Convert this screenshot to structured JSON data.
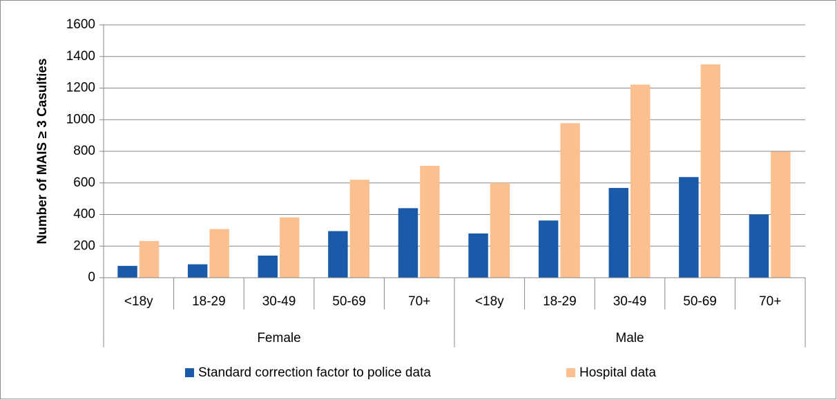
{
  "chart_data": {
    "type": "bar",
    "y_label": "Number of MAIS ≥ 3 Casulties",
    "groups": [
      {
        "name": "Female",
        "categories": [
          "<18y",
          "18-29",
          "30-49",
          "50-69",
          "70+"
        ]
      },
      {
        "name": "Male",
        "categories": [
          "<18y",
          "18-29",
          "30-49",
          "50-69",
          "70+"
        ]
      }
    ],
    "series": [
      {
        "name": "Standard correction factor to police data",
        "color": "#1a5aa8",
        "values": [
          75,
          85,
          140,
          295,
          440,
          280,
          362,
          568,
          637,
          400
        ]
      },
      {
        "name": "Hospital data",
        "color": "#fac090",
        "values": [
          232,
          308,
          382,
          620,
          708,
          600,
          978,
          1222,
          1350,
          798
        ]
      }
    ],
    "ylim": [
      0,
      1600
    ],
    "yticks": [
      0,
      200,
      400,
      600,
      800,
      1000,
      1200,
      1400,
      1600
    ],
    "grid": true,
    "legend": "bottom"
  }
}
